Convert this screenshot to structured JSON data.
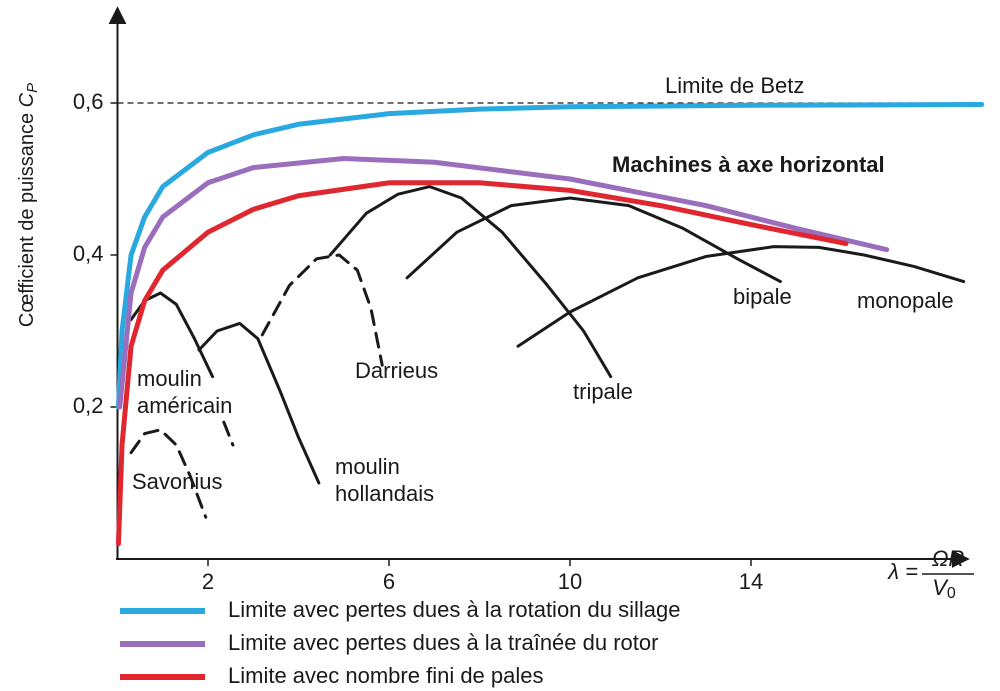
{
  "chart_data": {
    "type": "line",
    "y_label": "Cœfficient de puissance ",
    "y_label_symbol": "C",
    "y_label_subscript": "P",
    "x_label": {
      "lhs": "λ =",
      "numerator": "ΩR",
      "denominator": "V",
      "denominator_subscript": "0"
    },
    "xlim": [
      0,
      19.2
    ],
    "ylim": [
      0,
      0.72
    ],
    "xticks": [
      2,
      6,
      10,
      14
    ],
    "yticks": [
      {
        "value": 0.2,
        "label": "0,2"
      },
      {
        "value": 0.4,
        "label": "0,4"
      },
      {
        "value": 0.6,
        "label": "0,6"
      }
    ],
    "betz": {
      "value": 0.6,
      "label": "Limite de Betz"
    },
    "annotation": "Machines à axe horizontal",
    "series": [
      {
        "name": "Limite avec pertes dues à la rotation du sillage",
        "color": "#29a9e0",
        "x": [
          0.02,
          0.1,
          0.3,
          0.6,
          1,
          2,
          3,
          4,
          6,
          8,
          10,
          14,
          19.1
        ],
        "values": [
          0.2,
          0.3,
          0.4,
          0.45,
          0.49,
          0.535,
          0.558,
          0.572,
          0.586,
          0.592,
          0.595,
          0.597,
          0.598
        ]
      },
      {
        "name": "Limite avec pertes dues à la traînée du rotor",
        "color": "#9b6dbd",
        "x": [
          0.05,
          0.3,
          0.6,
          1,
          2,
          3,
          5,
          7,
          10,
          13,
          15,
          17
        ],
        "values": [
          0.2,
          0.35,
          0.41,
          0.45,
          0.495,
          0.515,
          0.527,
          0.522,
          0.5,
          0.465,
          0.435,
          0.407
        ]
      },
      {
        "name": "Limite avec nombre fini de pales",
        "color": "#e0262f",
        "x": [
          0.02,
          0.1,
          0.3,
          0.6,
          1,
          2,
          3,
          4,
          6,
          8,
          10,
          12,
          14,
          16.1
        ],
        "values": [
          0.02,
          0.15,
          0.28,
          0.34,
          0.38,
          0.43,
          0.46,
          0.478,
          0.495,
          0.495,
          0.485,
          0.465,
          0.44,
          0.415
        ]
      }
    ],
    "curves": [
      {
        "label": [
          "Savonius"
        ],
        "color": "#1a1a1a",
        "dashed": true,
        "x": [
          0.3,
          0.6,
          0.95,
          1.3,
          1.6,
          1.95
        ],
        "values": [
          0.14,
          0.165,
          0.17,
          0.15,
          0.11,
          0.055
        ]
      },
      {
        "label": [
          "moulin",
          "américain"
        ],
        "color": "#1a1a1a",
        "dashed": false,
        "dashed_from": 6,
        "x": [
          0.3,
          0.6,
          0.95,
          1.3,
          1.7,
          2.1,
          2.35,
          2.55
        ],
        "values": [
          0.315,
          0.34,
          0.35,
          0.335,
          0.29,
          0.24,
          0.18,
          0.15
        ]
      },
      {
        "label": [
          "moulin",
          "hollandais"
        ],
        "color": "#1a1a1a",
        "dashed": false,
        "x": [
          1.8,
          2.2,
          2.7,
          3.1,
          3.6,
          4.0,
          4.45
        ],
        "values": [
          0.275,
          0.3,
          0.31,
          0.29,
          0.22,
          0.16,
          0.1
        ]
      },
      {
        "label": [
          "Darrieus"
        ],
        "color": "#1a1a1a",
        "dashed": true,
        "x": [
          3.2,
          3.8,
          4.4,
          4.9,
          5.3,
          5.6,
          5.85
        ],
        "values": [
          0.295,
          0.36,
          0.395,
          0.4,
          0.38,
          0.33,
          0.255
        ]
      },
      {
        "label": [
          "tripale"
        ],
        "color": "#1a1a1a",
        "dashed": false,
        "x": [
          4.7,
          5.5,
          6.2,
          6.9,
          7.6,
          8.5,
          9.5,
          10.3,
          10.9
        ],
        "values": [
          0.4,
          0.455,
          0.48,
          0.49,
          0.475,
          0.43,
          0.36,
          0.3,
          0.24
        ]
      },
      {
        "label": [
          "bipale"
        ],
        "color": "#1a1a1a",
        "dashed": false,
        "x": [
          6.4,
          7.5,
          8.7,
          10,
          11.3,
          12.5,
          13.7,
          14.65
        ],
        "values": [
          0.37,
          0.43,
          0.465,
          0.475,
          0.465,
          0.435,
          0.395,
          0.365
        ]
      },
      {
        "label": [
          "monopale"
        ],
        "color": "#1a1a1a",
        "dashed": false,
        "x": [
          8.85,
          10,
          11.5,
          13,
          14.5,
          15.5,
          16.5,
          17.6,
          18.7
        ],
        "values": [
          0.28,
          0.325,
          0.37,
          0.398,
          0.411,
          0.41,
          0.4,
          0.385,
          0.365
        ]
      }
    ]
  }
}
